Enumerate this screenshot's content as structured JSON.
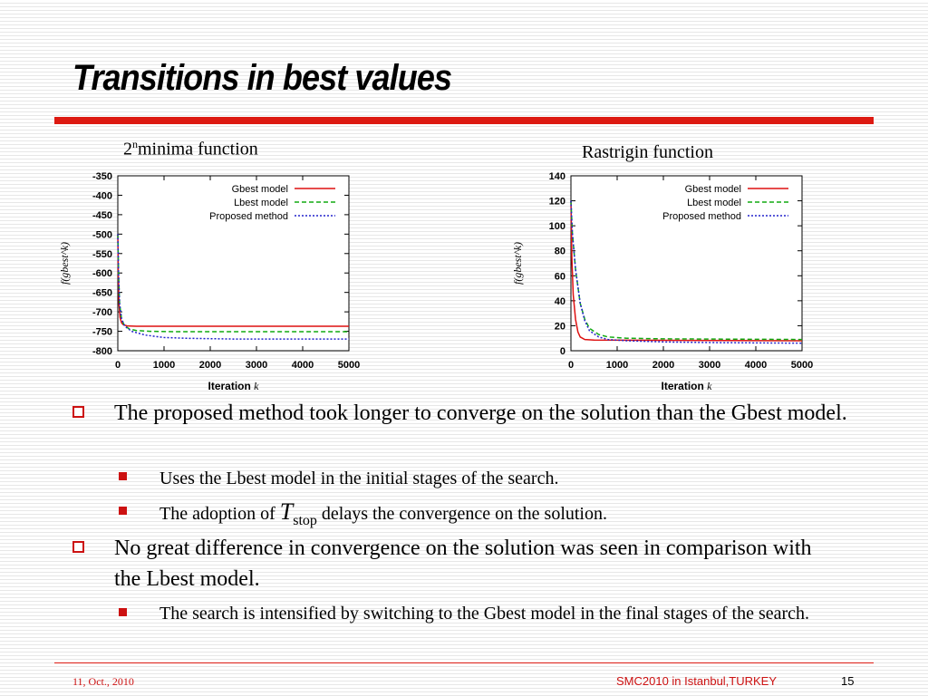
{
  "slide": {
    "title": "Transitions in best values"
  },
  "chart_data": [
    {
      "type": "line",
      "title_parts": {
        "base": "2",
        "superscript": "n",
        "rest": "minima function"
      },
      "xlabel": "Iteration",
      "xlabel_var": "k",
      "ylabel": "f(gbest^k)",
      "xlim": [
        0,
        5000
      ],
      "ylim": [
        -800,
        -350
      ],
      "xticks": [
        "0",
        "1000",
        "2000",
        "3000",
        "4000",
        "5000"
      ],
      "yticks": [
        "-350",
        "-400",
        "-450",
        "-500",
        "-550",
        "-600",
        "-650",
        "-700",
        "-750",
        "-800"
      ],
      "legend_position": "top-right",
      "series": [
        {
          "name": "Gbest model",
          "color": "#dd1111",
          "dash": "solid",
          "points": [
            [
              0,
              -500
            ],
            [
              10,
              -600
            ],
            [
              25,
              -680
            ],
            [
              50,
              -715
            ],
            [
              80,
              -728
            ],
            [
              120,
              -733
            ],
            [
              200,
              -736
            ],
            [
              400,
              -737
            ],
            [
              5000,
              -737
            ]
          ]
        },
        {
          "name": "Lbest model",
          "color": "#11aa11",
          "dash": "dashed",
          "points": [
            [
              0,
              -500
            ],
            [
              15,
              -600
            ],
            [
              40,
              -680
            ],
            [
              80,
              -718
            ],
            [
              140,
              -735
            ],
            [
              250,
              -744
            ],
            [
              400,
              -748
            ],
            [
              700,
              -750
            ],
            [
              1200,
              -751
            ],
            [
              5000,
              -751
            ]
          ]
        },
        {
          "name": "Proposed method",
          "color": "#2222cc",
          "dash": "dotted",
          "points": [
            [
              0,
              -500
            ],
            [
              15,
              -600
            ],
            [
              40,
              -680
            ],
            [
              80,
              -718
            ],
            [
              150,
              -737
            ],
            [
              300,
              -750
            ],
            [
              600,
              -760
            ],
            [
              1000,
              -766
            ],
            [
              1500,
              -768
            ],
            [
              2500,
              -770
            ],
            [
              5000,
              -770
            ]
          ]
        }
      ]
    },
    {
      "type": "line",
      "title": "Rastrigin function",
      "xlabel": "Iteration",
      "xlabel_var": "k",
      "ylabel": "f(gbest^k)",
      "xlim": [
        0,
        5000
      ],
      "ylim": [
        0,
        140
      ],
      "xticks": [
        "0",
        "1000",
        "2000",
        "3000",
        "4000",
        "5000"
      ],
      "yticks": [
        "140",
        "120",
        "100",
        "80",
        "60",
        "40",
        "20",
        "0"
      ],
      "legend_position": "top-right",
      "series": [
        {
          "name": "Gbest model",
          "color": "#dd1111",
          "dash": "solid",
          "points": [
            [
              0,
              120
            ],
            [
              20,
              75
            ],
            [
              50,
              45
            ],
            [
              100,
              25
            ],
            [
              150,
              15
            ],
            [
              200,
              11
            ],
            [
              300,
              9
            ],
            [
              500,
              8.5
            ],
            [
              5000,
              8
            ]
          ]
        },
        {
          "name": "Lbest model",
          "color": "#11aa11",
          "dash": "dashed",
          "points": [
            [
              0,
              120
            ],
            [
              30,
              95
            ],
            [
              100,
              65
            ],
            [
              200,
              38
            ],
            [
              300,
              25
            ],
            [
              400,
              18
            ],
            [
              600,
              13
            ],
            [
              800,
              11
            ],
            [
              1200,
              10
            ],
            [
              2000,
              9.5
            ],
            [
              5000,
              9
            ]
          ]
        },
        {
          "name": "Proposed method",
          "color": "#2222cc",
          "dash": "dotted",
          "points": [
            [
              0,
              120
            ],
            [
              30,
              95
            ],
            [
              100,
              65
            ],
            [
              200,
              38
            ],
            [
              300,
              24
            ],
            [
              400,
              16
            ],
            [
              600,
              11
            ],
            [
              800,
              9
            ],
            [
              1200,
              8
            ],
            [
              2000,
              7
            ],
            [
              3000,
              6.5
            ],
            [
              5000,
              6
            ]
          ]
        }
      ]
    }
  ],
  "bullets": {
    "b1": "The proposed method took longer to converge on the solution than the Gbest model.",
    "b1_1": "Uses the Lbest model in the initial stages of the search.",
    "b1_2_before": "The adoption of",
    "b1_2_math": "T",
    "b1_2_math_sub": "stop",
    "b1_2_after": "delays the convergence on the solution.",
    "b2": "No great difference in convergence on the solution was seen in comparison with the Lbest model.",
    "b2_1": "The search is intensified by switching to the Gbest model in the final stages of the search."
  },
  "footer": {
    "date": "11, Oct., 2010",
    "center": "SMC2010 in Istanbul,TURKEY",
    "page": "15"
  }
}
